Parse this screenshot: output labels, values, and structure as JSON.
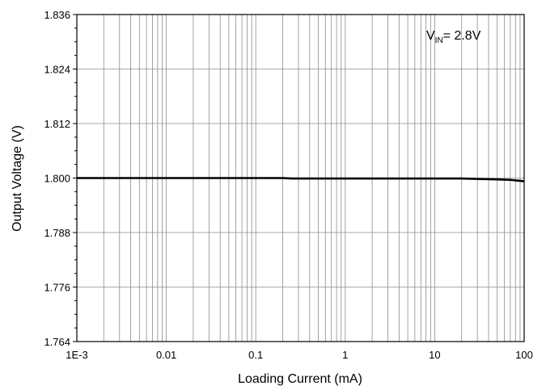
{
  "chart_data": {
    "type": "line",
    "title": "",
    "xlabel": "Loading Current (mA)",
    "ylabel": "Output Voltage (V)",
    "x_scale": "log",
    "xlim": [
      0.001,
      100
    ],
    "ylim": [
      1.764,
      1.836
    ],
    "x_ticks": [
      {
        "value": 0.001,
        "label": "1E-3"
      },
      {
        "value": 0.01,
        "label": "0.01"
      },
      {
        "value": 0.1,
        "label": "0.1"
      },
      {
        "value": 1,
        "label": "1"
      },
      {
        "value": 10,
        "label": "10"
      },
      {
        "value": 100,
        "label": "100"
      }
    ],
    "y_ticks": [
      {
        "value": 1.764,
        "label": "1.764"
      },
      {
        "value": 1.776,
        "label": "1.776"
      },
      {
        "value": 1.788,
        "label": "1.788"
      },
      {
        "value": 1.8,
        "label": "1.800"
      },
      {
        "value": 1.812,
        "label": "1.812"
      },
      {
        "value": 1.824,
        "label": "1.824"
      },
      {
        "value": 1.836,
        "label": "1.836"
      }
    ],
    "grid": true,
    "annotation": {
      "main": "V",
      "subscript": "IN",
      "suffix": "= 2.8V",
      "position": "top-right"
    },
    "series": [
      {
        "color": "#000000",
        "x": [
          0.001,
          0.01,
          0.1,
          0.2,
          0.25,
          1,
          10,
          20,
          30,
          50,
          70,
          100
        ],
        "y": [
          1.8,
          1.8,
          1.8,
          1.8,
          1.7999,
          1.7999,
          1.7999,
          1.7999,
          1.7998,
          1.7997,
          1.7996,
          1.7993
        ]
      }
    ]
  }
}
